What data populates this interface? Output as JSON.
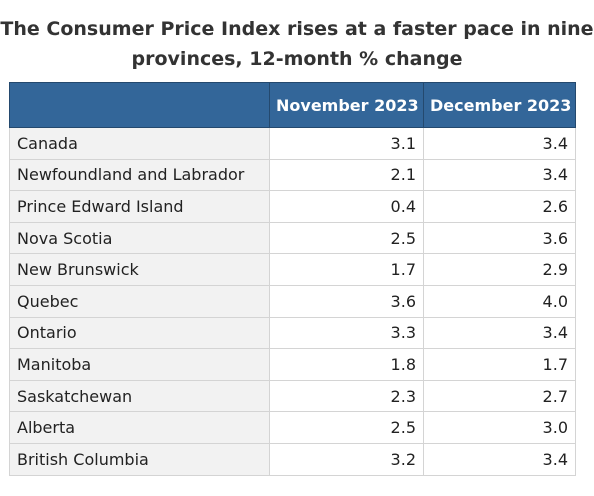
{
  "chart_data": {
    "type": "table",
    "title": "The Consumer Price Index rises at a faster pace in nine provinces, 12-month % change",
    "columns": [
      "November 2023",
      "December 2023"
    ],
    "rows": [
      {
        "label": "Canada",
        "values": [
          "3.1",
          "3.4"
        ]
      },
      {
        "label": "Newfoundland and Labrador",
        "values": [
          "2.1",
          "3.4"
        ]
      },
      {
        "label": "Prince Edward Island",
        "values": [
          "0.4",
          "2.6"
        ]
      },
      {
        "label": "Nova Scotia",
        "values": [
          "2.5",
          "3.6"
        ]
      },
      {
        "label": "New Brunswick",
        "values": [
          "1.7",
          "2.9"
        ]
      },
      {
        "label": "Quebec",
        "values": [
          "3.6",
          "4.0"
        ]
      },
      {
        "label": "Ontario",
        "values": [
          "3.3",
          "3.4"
        ]
      },
      {
        "label": "Manitoba",
        "values": [
          "1.8",
          "1.7"
        ]
      },
      {
        "label": "Saskatchewan",
        "values": [
          "2.3",
          "2.7"
        ]
      },
      {
        "label": "Alberta",
        "values": [
          "2.5",
          "3.0"
        ]
      },
      {
        "label": "British Columbia",
        "values": [
          "3.2",
          "3.4"
        ]
      }
    ],
    "colors": {
      "header_background": "#336699",
      "header_text": "#ffffff",
      "stub_background": "#f2f2f2",
      "grid": "#d4d4d4"
    }
  }
}
